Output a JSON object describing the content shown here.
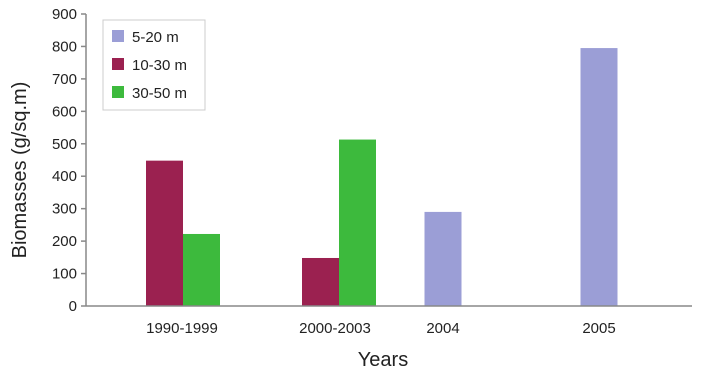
{
  "chart_data": {
    "type": "bar",
    "categories": [
      "1990-1999",
      "2000-2003",
      "2004",
      "2005"
    ],
    "series": [
      {
        "name": "5-20 m",
        "color": "#9b9ed6",
        "values": [
          null,
          null,
          290,
          795
        ]
      },
      {
        "name": "10-30 m",
        "color": "#9b2150",
        "values": [
          448,
          148,
          null,
          null
        ]
      },
      {
        "name": "30-50 m",
        "color": "#3dba3d",
        "values": [
          222,
          513,
          null,
          null
        ]
      }
    ],
    "xlabel": "Years",
    "ylabel": "Biomasses (g/sq.m)",
    "ylim": [
      0,
      900
    ],
    "yticks": [
      "0",
      "100",
      "200",
      "300",
      "400",
      "500",
      "600",
      "700",
      "800",
      "900"
    ],
    "grid": false,
    "legend_position": "top-left"
  }
}
